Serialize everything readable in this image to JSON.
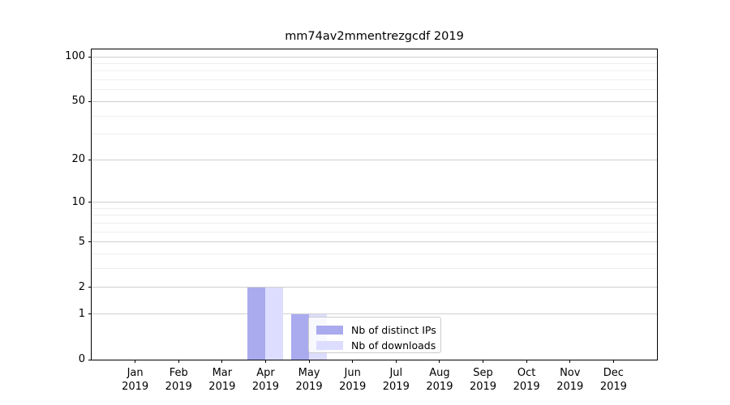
{
  "chart_data": {
    "type": "bar",
    "title": "mm74av2mmentrezgcdf 2019",
    "categories": [
      "Jan",
      "Feb",
      "Mar",
      "Apr",
      "May",
      "Jun",
      "Jul",
      "Aug",
      "Sep",
      "Oct",
      "Nov",
      "Dec"
    ],
    "year_label": "2019",
    "series": [
      {
        "name": "Nb of distinct IPs",
        "color": "#aaaaee",
        "values": [
          0,
          0,
          0,
          2,
          1,
          0,
          0,
          0,
          0,
          0,
          0,
          0
        ]
      },
      {
        "name": "Nb of downloads",
        "color": "#ddddff",
        "values": [
          0,
          0,
          0,
          2,
          1,
          0,
          0,
          0,
          0,
          0,
          0,
          0
        ]
      }
    ],
    "xlabel": "",
    "ylabel": "",
    "y_scale": "log1p",
    "ylim": [
      0,
      112
    ],
    "y_ticks": [
      0,
      1,
      2,
      5,
      10,
      20,
      50,
      100
    ],
    "y_minor_gridlines": [
      3,
      4,
      6,
      7,
      8,
      9,
      30,
      40,
      60,
      70,
      80,
      90
    ],
    "grid": true,
    "legend_position": "lower-center",
    "legend_frame_alpha": 0.8
  },
  "colors": {
    "major_grid": "#cfcfcf",
    "minor_grid": "#eeeeee",
    "axis": "#000000",
    "legend_border": "#cccccc",
    "background": "#ffffff"
  }
}
